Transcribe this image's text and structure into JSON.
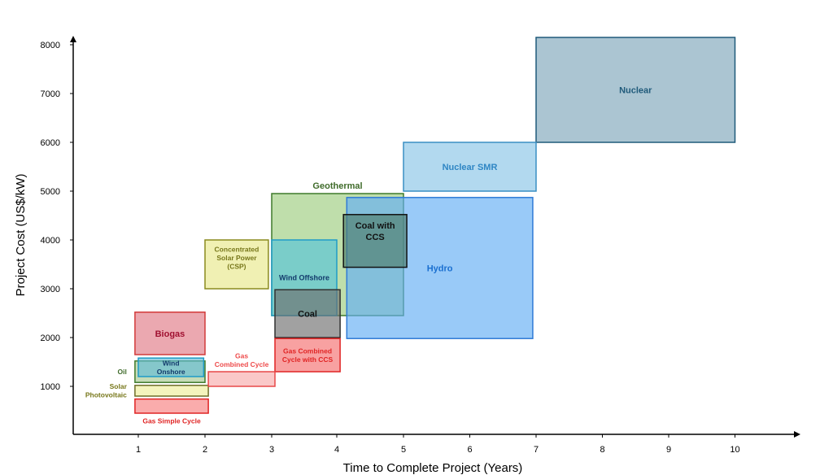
{
  "chart_data": {
    "type": "range-box",
    "title": "",
    "xlabel": "Time to Complete Project (Years)",
    "ylabel": "Project Cost (US$/kW)",
    "x_ticks": [
      {
        "label": "1",
        "value": 1
      },
      {
        "label": "2",
        "value": 2
      },
      {
        "label": "3",
        "value": 3
      },
      {
        "label": "4",
        "value": 4
      },
      {
        "label": "5",
        "value": 5
      },
      {
        "label": "6",
        "value": 6
      },
      {
        "label": "7",
        "value": 7
      },
      {
        "label": "8",
        "value": 8
      },
      {
        "label": "9",
        "value": 9
      },
      {
        "label": "10",
        "value": 10
      }
    ],
    "y_ticks": [
      {
        "label": "1000",
        "value": 1000
      },
      {
        "label": "2000",
        "value": 2000
      },
      {
        "label": "3000",
        "value": 3000
      },
      {
        "label": "4000",
        "value": 4000
      },
      {
        "label": "5000",
        "value": 5000
      },
      {
        "label": "6000",
        "value": 6000
      },
      {
        "label": "7000",
        "value": 7000
      },
      {
        "label": "8000",
        "value": 8000
      }
    ],
    "grid": false,
    "legend": "none",
    "series": [
      {
        "id": "geothermal",
        "label_lines": [
          "Geothermal"
        ],
        "x_range": [
          3,
          5
        ],
        "y_range": [
          2450,
          4950
        ],
        "fill": "#9ccc7e",
        "stroke": "#3e7a2b",
        "text_color": "#3f6b2a",
        "label_position": "above"
      },
      {
        "id": "hydro",
        "label_lines": [
          "Hydro"
        ],
        "x_range": [
          4.15,
          6.95
        ],
        "y_range": [
          1980,
          4870
        ],
        "fill": "#62aef5",
        "stroke": "#2f7ad6",
        "text_color": "#1a6fd0",
        "label_position": "inside"
      },
      {
        "id": "nuclear",
        "label_lines": [
          "Nuclear"
        ],
        "x_range": [
          7,
          10
        ],
        "y_range": [
          6000,
          8150
        ],
        "fill": "#7ea6ba",
        "stroke": "#1f5a7a",
        "text_color": "#1f5a7a",
        "label_position": "inside"
      },
      {
        "id": "nuclear-smr",
        "label_lines": [
          "Nuclear SMR"
        ],
        "x_range": [
          5,
          7
        ],
        "y_range": [
          5000,
          6000
        ],
        "fill": "#89c4e6",
        "stroke": "#3a8fc4",
        "text_color": "#2f86c4",
        "label_position": "inside"
      },
      {
        "id": "wind-offshore",
        "label_lines": [
          "Wind Offshore"
        ],
        "x_range": [
          3,
          4
        ],
        "y_range": [
          2450,
          4000
        ],
        "fill": "#55c3d9",
        "stroke": "#1f9bc7",
        "text_color": "#123a6b",
        "label_position": "inside"
      },
      {
        "id": "coal",
        "label_lines": [
          "Coal"
        ],
        "x_range": [
          3.05,
          4.05
        ],
        "y_range": [
          2000,
          2980
        ],
        "fill": "#6e6e6e",
        "stroke": "#303030",
        "text_color": "#111111",
        "label_position": "inside"
      },
      {
        "id": "coal-ccs",
        "label_lines": [
          "Coal with",
          "CCS"
        ],
        "x_range": [
          4.1,
          5.05
        ],
        "y_range": [
          3440,
          4520
        ],
        "fill": "#4e7c6c",
        "stroke": "#111111",
        "text_color": "#111111",
        "label_position": "inside"
      },
      {
        "id": "gas-combined-ccs",
        "label_lines": [
          "Gas Combined",
          "Cycle with CCS"
        ],
        "x_range": [
          3.05,
          4.05
        ],
        "y_range": [
          1300,
          1980
        ],
        "fill": "#f56f6f",
        "stroke": "#e02424",
        "text_color": "#e02424",
        "label_position": "inside"
      },
      {
        "id": "csp",
        "label_lines": [
          "Concentrated",
          "Solar Power",
          "(CSP)"
        ],
        "x_range": [
          2,
          2.95
        ],
        "y_range": [
          3000,
          4000
        ],
        "fill": "#e8e88a",
        "stroke": "#8a8a1e",
        "text_color": "#77771a",
        "label_position": "inside"
      },
      {
        "id": "biogas",
        "label_lines": [
          "Biogas"
        ],
        "x_range": [
          0.95,
          2
        ],
        "y_range": [
          1650,
          2520
        ],
        "fill": "#e07a85",
        "stroke": "#d23a3a",
        "text_color": "#a01030",
        "label_position": "inside"
      },
      {
        "id": "oil",
        "label_lines": [
          "Oil"
        ],
        "x_range": [
          0.95,
          2
        ],
        "y_range": [
          1080,
          1520
        ],
        "fill": "#a7c990",
        "stroke": "#3e7a2b",
        "text_color": "#3f6b2a",
        "label_position": "left"
      },
      {
        "id": "wind-onshore",
        "label_lines": [
          "Wind",
          "Onshore"
        ],
        "x_range": [
          1,
          1.98
        ],
        "y_range": [
          1200,
          1580
        ],
        "fill": "#63bcd6",
        "stroke": "#1f9bc7",
        "text_color": "#123a6b",
        "label_position": "inside"
      },
      {
        "id": "solar-pv",
        "label_lines": [
          "Solar",
          "Photovoltaic"
        ],
        "x_range": [
          0.95,
          2.05
        ],
        "y_range": [
          800,
          1020
        ],
        "fill": "#eeee99",
        "stroke": "#6e6e2a",
        "text_color": "#77771a",
        "label_position": "left"
      },
      {
        "id": "gas-simple",
        "label_lines": [
          "Gas Simple Cycle"
        ],
        "x_range": [
          0.95,
          2.05
        ],
        "y_range": [
          450,
          740
        ],
        "fill": "#f77f7f",
        "stroke": "#e02424",
        "text_color": "#e02424",
        "label_position": "below"
      },
      {
        "id": "gas-combined",
        "label_lines": [
          "Gas",
          "Combined Cycle"
        ],
        "x_range": [
          2.05,
          3.05
        ],
        "y_range": [
          1000,
          1300
        ],
        "fill": "#f7aaaa",
        "stroke": "#e84848",
        "text_color": "#ee4b4b",
        "label_position": "above"
      }
    ]
  }
}
